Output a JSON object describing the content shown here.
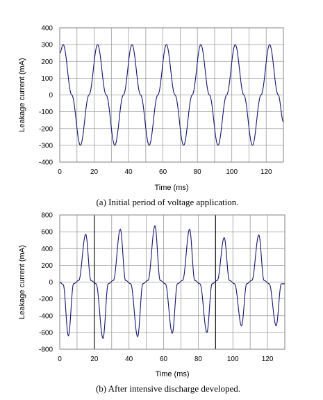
{
  "chart_data": [
    {
      "type": "line",
      "xlabel": "Time (ms)",
      "ylabel": "Leakage current (mA)",
      "caption": "(a) Initial period of voltage application.",
      "xlim": [
        0,
        130
      ],
      "ylim": [
        -400,
        400
      ],
      "xticks": [
        0,
        20,
        40,
        60,
        80,
        100,
        120
      ],
      "yticks": [
        400,
        300,
        200,
        100,
        0,
        -100,
        -200,
        -300,
        -400
      ],
      "grid": true,
      "x": [
        0,
        2,
        7,
        12,
        17,
        22,
        27,
        32,
        37,
        42,
        47,
        52,
        57,
        62,
        67,
        72,
        77,
        82,
        87,
        92,
        97,
        102,
        107,
        112,
        117,
        122,
        127,
        130
      ],
      "y": [
        250,
        300,
        0,
        -300,
        0,
        300,
        0,
        -300,
        0,
        300,
        0,
        -300,
        0,
        300,
        0,
        -300,
        0,
        300,
        0,
        -300,
        0,
        300,
        0,
        -300,
        0,
        300,
        0,
        -160
      ]
    },
    {
      "type": "line",
      "xlabel": "Time (ms)",
      "ylabel": "Leakage current (mA)",
      "caption": "(b) After intensive discharge developed.",
      "xlim": [
        0,
        130
      ],
      "ylim": [
        -800,
        800
      ],
      "xticks": [
        0,
        20,
        40,
        60,
        80,
        100,
        120
      ],
      "yticks": [
        800,
        600,
        400,
        200,
        0,
        -200,
        -400,
        -600,
        -800
      ],
      "grid": true,
      "x": [
        0,
        2,
        5,
        8,
        11,
        15,
        18,
        21,
        25,
        28,
        31,
        35,
        38,
        41,
        45,
        48,
        51,
        55,
        58,
        61,
        65,
        68,
        71,
        75,
        78,
        81,
        85,
        88,
        91,
        95,
        98,
        101,
        105,
        108,
        111,
        115,
        118,
        121,
        125,
        128,
        130
      ],
      "y": [
        0,
        -30,
        -640,
        -20,
        20,
        570,
        20,
        -20,
        -670,
        -20,
        20,
        630,
        20,
        -20,
        -650,
        -20,
        20,
        670,
        20,
        -20,
        -610,
        -20,
        20,
        630,
        20,
        -20,
        -600,
        -20,
        20,
        530,
        20,
        -20,
        -520,
        -20,
        20,
        560,
        20,
        -20,
        -520,
        -20,
        -20
      ]
    }
  ]
}
